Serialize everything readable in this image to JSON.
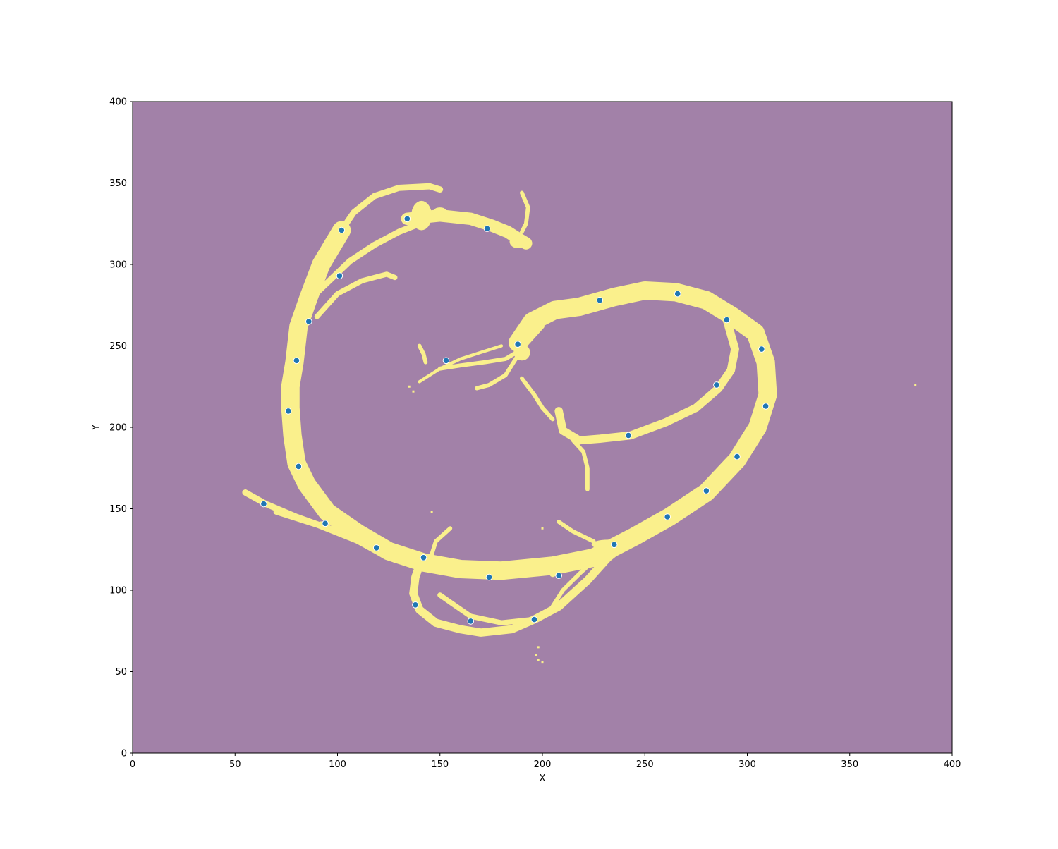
{
  "chart_data": {
    "type": "scatter",
    "title": "",
    "xlabel": "X",
    "ylabel": "Y",
    "xlim": [
      0,
      400
    ],
    "ylim": [
      0,
      400
    ],
    "x_ticks": [
      0,
      50,
      100,
      150,
      200,
      250,
      300,
      350,
      400
    ],
    "y_ticks": [
      0,
      50,
      100,
      150,
      200,
      250,
      300,
      350,
      400
    ],
    "grid": false,
    "background_color": "#a281a8",
    "mask_color": "#faf08c",
    "point_color": "#1f77b4",
    "point_edge_color": "#ffffff",
    "mask": {
      "description_free": true,
      "bands": [
        {
          "width": 9,
          "points": [
            [
              102,
              321
            ],
            [
              92,
              300
            ],
            [
              86,
              280
            ],
            [
              81,
              262
            ],
            [
              79,
              240
            ],
            [
              77,
              225
            ],
            [
              77,
              212
            ],
            [
              78,
              195
            ],
            [
              80,
              178
            ],
            [
              85,
              165
            ],
            [
              95,
              148
            ],
            [
              110,
              135
            ],
            [
              125,
              124
            ],
            [
              142,
              117
            ],
            [
              160,
              113
            ],
            [
              180,
              112
            ],
            [
              205,
              115
            ],
            [
              225,
              120
            ],
            [
              245,
              133
            ],
            [
              262,
              145
            ],
            [
              280,
              160
            ],
            [
              295,
              180
            ],
            [
              305,
              200
            ],
            [
              310,
              220
            ],
            [
              309,
              240
            ],
            [
              304,
              258
            ],
            [
              293,
              268
            ],
            [
              280,
              278
            ],
            [
              265,
              283
            ],
            [
              250,
              284
            ],
            [
              235,
              280
            ],
            [
              218,
              274
            ],
            [
              206,
              272
            ],
            [
              195,
              265
            ],
            [
              188,
              252
            ]
          ]
        },
        {
          "width": 4,
          "points": [
            [
              290,
              266
            ],
            [
              294,
              248
            ],
            [
              292,
              235
            ],
            [
              286,
              224
            ],
            [
              275,
              212
            ],
            [
              260,
              203
            ],
            [
              243,
              195
            ],
            [
              228,
              193
            ],
            [
              218,
              192
            ],
            [
              210,
              198
            ],
            [
              208,
              210
            ]
          ]
        },
        {
          "width": 6,
          "points": [
            [
              134,
              328
            ],
            [
              150,
              330
            ],
            [
              165,
              328
            ],
            [
              175,
              324
            ],
            [
              183,
              320
            ],
            [
              188,
              316
            ],
            [
              192,
              313
            ]
          ]
        },
        {
          "width": 3,
          "points": [
            [
              102,
              321
            ],
            [
              108,
              332
            ],
            [
              118,
              342
            ],
            [
              130,
              347
            ],
            [
              145,
              348
            ],
            [
              150,
              346
            ]
          ]
        },
        {
          "width": 3,
          "points": [
            [
              86,
              278
            ],
            [
              96,
              290
            ],
            [
              106,
              302
            ],
            [
              118,
              312
            ],
            [
              130,
              320
            ],
            [
              140,
              325
            ]
          ]
        },
        {
          "width": 2.5,
          "points": [
            [
              90,
              268
            ],
            [
              100,
              282
            ],
            [
              112,
              290
            ],
            [
              124,
              294
            ],
            [
              128,
              292
            ]
          ]
        },
        {
          "width": 3,
          "points": [
            [
              55,
              160
            ],
            [
              65,
              153
            ],
            [
              80,
              145
            ],
            [
              100,
              136
            ],
            [
              120,
              125
            ],
            [
              140,
              118
            ]
          ]
        },
        {
          "width": 2.5,
          "points": [
            [
              70,
              148
            ],
            [
              90,
              140
            ],
            [
              110,
              130
            ],
            [
              130,
              122
            ]
          ]
        },
        {
          "width": 2,
          "points": [
            [
              92,
              141
            ],
            [
              105,
              133
            ],
            [
              118,
              124
            ],
            [
              128,
              118
            ]
          ]
        },
        {
          "width": 4,
          "points": [
            [
              141,
              119
            ],
            [
              138,
              108
            ],
            [
              137,
              98
            ],
            [
              140,
              88
            ],
            [
              148,
              80
            ],
            [
              160,
              76
            ],
            [
              170,
              74
            ],
            [
              185,
              76
            ],
            [
              196,
              82
            ],
            [
              208,
              90
            ],
            [
              222,
              106
            ],
            [
              232,
              120
            ],
            [
              240,
              128
            ]
          ]
        },
        {
          "width": 2,
          "points": [
            [
              145,
              118
            ],
            [
              148,
              130
            ],
            [
              155,
              138
            ]
          ]
        },
        {
          "width": 2.5,
          "points": [
            [
              150,
              97
            ],
            [
              165,
              84
            ],
            [
              180,
              80
            ],
            [
              195,
              82
            ]
          ]
        },
        {
          "width": 2,
          "points": [
            [
              205,
              90
            ],
            [
              210,
              100
            ],
            [
              218,
              110
            ],
            [
              225,
              118
            ]
          ]
        },
        {
          "width": 3,
          "points": [
            [
              205,
              110
            ],
            [
              215,
              116
            ],
            [
              225,
              122
            ],
            [
              235,
              128
            ]
          ]
        },
        {
          "width": 2,
          "points": [
            [
              225,
              130
            ],
            [
              215,
              136
            ],
            [
              208,
              142
            ]
          ]
        },
        {
          "width": 2,
          "points": [
            [
              200,
              262
            ],
            [
              190,
              248
            ],
            [
              182,
              242
            ],
            [
              172,
              240
            ],
            [
              160,
              238
            ],
            [
              150,
              236
            ]
          ]
        },
        {
          "width": 2,
          "points": [
            [
              195,
              258
            ],
            [
              188,
              244
            ],
            [
              182,
              232
            ],
            [
              174,
              226
            ],
            [
              168,
              224
            ]
          ]
        },
        {
          "width": 2,
          "points": [
            [
              190,
              230
            ],
            [
              196,
              220
            ],
            [
              200,
              212
            ],
            [
              205,
              205
            ]
          ]
        },
        {
          "width": 2,
          "points": [
            [
              215,
              192
            ],
            [
              220,
              185
            ],
            [
              222,
              175
            ],
            [
              222,
              162
            ]
          ]
        },
        {
          "width": 1.5,
          "points": [
            [
              140,
              228
            ],
            [
              150,
              236
            ],
            [
              160,
              242
            ],
            [
              170,
              246
            ],
            [
              180,
              250
            ]
          ]
        },
        {
          "width": 2,
          "points": [
            [
              140,
              250
            ],
            [
              142,
              245
            ],
            [
              143,
              240
            ]
          ]
        },
        {
          "width": 2,
          "points": [
            [
              190,
              320
            ],
            [
              192,
              325
            ],
            [
              193,
              335
            ],
            [
              190,
              344
            ]
          ]
        }
      ],
      "blobs": [
        {
          "cx": 141,
          "cy": 330,
          "rx": 5,
          "ry": 9
        },
        {
          "cx": 188,
          "cy": 314,
          "rx": 4,
          "ry": 4
        },
        {
          "cx": 150,
          "cy": 333,
          "rx": 3,
          "ry": 2
        },
        {
          "cx": 202,
          "cy": 116,
          "rx": 10,
          "ry": 4
        },
        {
          "cx": 232,
          "cy": 128,
          "rx": 8,
          "ry": 3
        },
        {
          "cx": 190,
          "cy": 246,
          "rx": 4,
          "ry": 5
        }
      ],
      "specks": [
        [
          382,
          226
        ],
        [
          198,
          65
        ],
        [
          197,
          60
        ],
        [
          198,
          57
        ],
        [
          200,
          56
        ],
        [
          135,
          225
        ],
        [
          137,
          222
        ],
        [
          200,
          138
        ],
        [
          146,
          148
        ]
      ]
    },
    "series": [
      {
        "x": [
          102,
          134,
          173,
          101,
          86,
          80,
          76,
          81,
          64,
          94,
          119,
          142,
          174,
          208,
          196,
          165,
          138,
          153,
          188,
          228,
          266,
          290,
          307,
          285,
          309,
          242,
          295,
          280,
          261,
          235
        ],
        "y": [
          321,
          328,
          322,
          293,
          265,
          241,
          210,
          176,
          153,
          141,
          126,
          120,
          108,
          109,
          82,
          81,
          91,
          241,
          251,
          278,
          282,
          266,
          248,
          226,
          213,
          195,
          182,
          161,
          145,
          128
        ]
      }
    ]
  }
}
